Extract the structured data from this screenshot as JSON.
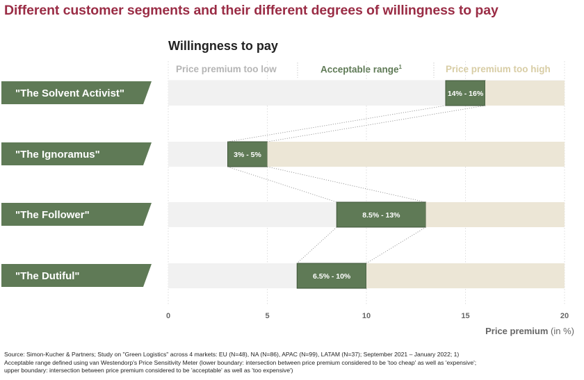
{
  "page_title": "Different customer segments and their different degrees of willingness to pay",
  "chart_data": {
    "type": "bar",
    "title": "Willingness to pay",
    "zone_headers": {
      "low": "Price premium too low",
      "acceptable": "Acceptable range",
      "acceptable_sup": "1",
      "high": "Price premium too high"
    },
    "xlabel": "Price premium",
    "xlabel_unit": "(in %)",
    "xlim": [
      0,
      20
    ],
    "xticks": [
      0,
      5,
      10,
      15,
      20
    ],
    "segments": [
      {
        "name": "\"The Solvent Activist\"",
        "low": 14,
        "high": 16,
        "range_label": "14% - 16%"
      },
      {
        "name": "\"The Ignoramus\"",
        "low": 3,
        "high": 5,
        "range_label": "3% - 5%"
      },
      {
        "name": "\"The Follower\"",
        "low": 8.5,
        "high": 13,
        "range_label": "8.5% - 13%"
      },
      {
        "name": "\"The Dutiful\"",
        "low": 6.5,
        "high": 10,
        "range_label": "6.5% - 10%"
      }
    ],
    "colors": {
      "too_low": "#f1f1f1",
      "acceptable": "#5f7a56",
      "too_high": "#ece6d6",
      "label_bg": "#5f7a56",
      "header_low": "#b5b5b5",
      "header_acceptable": "#5f7a56",
      "header_high": "#d8cda5"
    }
  },
  "footnote": {
    "line1": "Source: Simon-Kucher & Partners; Study on \"Green Logistics\" across 4 markets: EU (N=48), NA (N=86), APAC (N=99), LATAM (N=37); September 2021 – January 2022; 1)",
    "line2": "Acceptable range defined using van Westendorp's Price Sensitivity Meter (lower boundary: intersection between price premium considered to be 'too cheap' as well as 'expensive';",
    "line3": "upper boundary: intersection between price premium considered to be 'acceptable' as well as 'too expensive')"
  }
}
